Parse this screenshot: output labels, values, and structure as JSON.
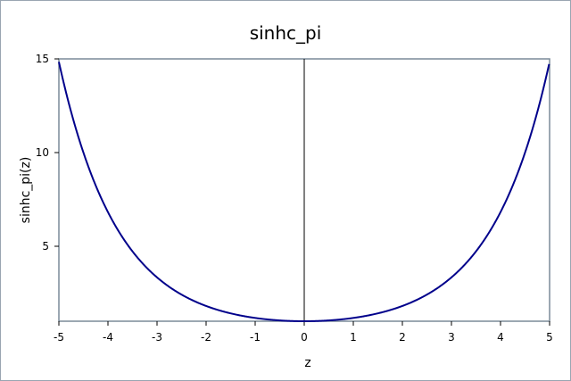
{
  "chart_data": {
    "type": "line",
    "title": "sinhc_pi",
    "xlabel": "z",
    "ylabel": "sinhc_pi(z)",
    "xlim": [
      -5,
      5
    ],
    "ylim": [
      1,
      15
    ],
    "x_ticks": [
      -5,
      -4,
      -3,
      -2,
      -1,
      0,
      1,
      2,
      3,
      4,
      5
    ],
    "y_ticks": [
      5,
      10,
      15
    ],
    "grid": false,
    "series": [
      {
        "color": "#00008B",
        "x": [
          -5,
          -4.5,
          -4,
          -3.5,
          -3,
          -2.5,
          -2,
          -1.5,
          -1,
          -0.5,
          0,
          0.5,
          1,
          1.5,
          2,
          2.5,
          3,
          3.5,
          4,
          4.5,
          4.99
        ],
        "y": [
          14.84,
          10.0,
          6.82,
          4.73,
          3.34,
          2.42,
          1.81,
          1.42,
          1.18,
          1.04,
          1.0,
          1.04,
          1.18,
          1.42,
          1.81,
          2.42,
          3.34,
          4.73,
          6.82,
          10.0,
          14.71
        ]
      }
    ],
    "colors": {
      "frame": "#7A8A99",
      "background": "#FFFFFF",
      "zero_line": "#000000"
    }
  }
}
